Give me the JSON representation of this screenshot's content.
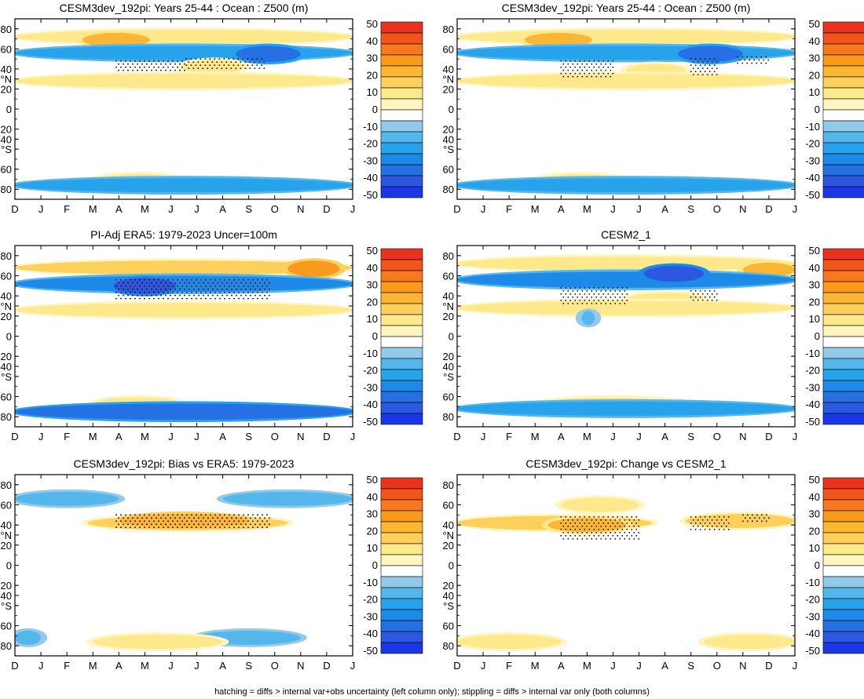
{
  "chart_data": [
    {
      "type": "heatmap",
      "title": "CESM3dev_192pi: Years 25-44 : Ocean : Z500 (m)",
      "panel": "top-left",
      "x_ticks": [
        "D",
        "J",
        "F",
        "M",
        "A",
        "M",
        "J",
        "J",
        "A",
        "S",
        "O",
        "N",
        "D",
        "J"
      ],
      "y_ticks": [
        "80",
        "60",
        "40",
        "°N",
        "20",
        "0",
        "20",
        "40",
        "°S",
        "60",
        "80"
      ],
      "colorbar_ticks": [
        "50",
        "40",
        "30",
        "20",
        "10",
        "0",
        "-10",
        "-20",
        "-30",
        "-40",
        "-50"
      ],
      "features": [
        {
          "kind": "warm",
          "lat": 72,
          "t0": 0,
          "t1": 13,
          "value": 10
        },
        {
          "kind": "warm",
          "lat": 69,
          "t0": 2.6,
          "t1": 5.2,
          "value": 20
        },
        {
          "kind": "cold",
          "lat": 56,
          "t0": 0,
          "t1": 13,
          "value": -20
        },
        {
          "kind": "cold",
          "lat": 55,
          "t0": 8.5,
          "t1": 11,
          "value": -30
        },
        {
          "kind": "warm",
          "lat": 42,
          "t0": 6.5,
          "t1": 8.8,
          "value": 10
        },
        {
          "kind": "warm",
          "lat": 28,
          "t0": 0,
          "t1": 13,
          "value": 10
        },
        {
          "kind": "warm",
          "lat": -72,
          "t0": 3,
          "t1": 6.5,
          "value": 10
        },
        {
          "kind": "cold",
          "lat": -76,
          "t0": 0,
          "t1": 13,
          "value": -20
        }
      ],
      "stipple": [
        {
          "t0": 3.9,
          "t1": 6.6,
          "lat0": 38,
          "lat1": 48
        },
        {
          "t0": 6.6,
          "t1": 9.6,
          "lat0": 40,
          "lat1": 50
        }
      ]
    },
    {
      "type": "heatmap",
      "title": "CESM3dev_192pi: Years 25-44 : Ocean : Z500 (m)",
      "panel": "top-right",
      "x_ticks": [
        "D",
        "J",
        "F",
        "M",
        "A",
        "M",
        "J",
        "J",
        "A",
        "S",
        "O",
        "N",
        "D",
        "J"
      ],
      "y_ticks": [
        "80",
        "60",
        "40",
        "°N",
        "20",
        "0",
        "20",
        "40",
        "°S",
        "60",
        "80"
      ],
      "colorbar_ticks": [
        "50",
        "40",
        "30",
        "20",
        "10",
        "0",
        "-10",
        "-20",
        "-30",
        "-40",
        "-50"
      ],
      "features": [
        {
          "kind": "warm",
          "lat": 72,
          "t0": 0,
          "t1": 13,
          "value": 10
        },
        {
          "kind": "warm",
          "lat": 69,
          "t0": 2.6,
          "t1": 5.2,
          "value": 20
        },
        {
          "kind": "cold",
          "lat": 56,
          "t0": 0,
          "t1": 13,
          "value": -20
        },
        {
          "kind": "cold",
          "lat": 55,
          "t0": 8.5,
          "t1": 11,
          "value": -30
        },
        {
          "kind": "warm",
          "lat": 38,
          "t0": 6.5,
          "t1": 8.8,
          "value": 10
        },
        {
          "kind": "warm",
          "lat": 28,
          "t0": 0,
          "t1": 13,
          "value": 10
        },
        {
          "kind": "warm",
          "lat": -72,
          "t0": 3,
          "t1": 6.5,
          "value": 10
        },
        {
          "kind": "cold",
          "lat": -76,
          "t0": 0,
          "t1": 13,
          "value": -20
        }
      ],
      "stipple": [
        {
          "t0": 4,
          "t1": 6,
          "lat0": 30,
          "lat1": 48
        },
        {
          "t0": 9,
          "t1": 10,
          "lat0": 33,
          "lat1": 50
        },
        {
          "t0": 10.8,
          "t1": 12,
          "lat0": 45,
          "lat1": 52
        }
      ]
    },
    {
      "type": "heatmap",
      "title": "PI-Adj ERA5: 1979-2023 Uncer=100m",
      "panel": "middle-left",
      "x_ticks": [
        "D",
        "J",
        "F",
        "M",
        "A",
        "M",
        "J",
        "J",
        "A",
        "S",
        "O",
        "N",
        "D",
        "J"
      ],
      "y_ticks": [
        "80",
        "60",
        "40",
        "°N",
        "20",
        "0",
        "20",
        "40",
        "°S",
        "60",
        "80"
      ],
      "colorbar_ticks": [
        "50",
        "40",
        "30",
        "20",
        "10",
        "0",
        "-10",
        "-20",
        "-30",
        "-40",
        "-50"
      ],
      "features": [
        {
          "kind": "warm",
          "lat": 68,
          "t0": 0,
          "t1": 13,
          "value": 15
        },
        {
          "kind": "warm",
          "lat": 67,
          "t0": 10.5,
          "t1": 12.5,
          "value": 25
        },
        {
          "kind": "cold",
          "lat": 52,
          "t0": 0,
          "t1": 13,
          "value": -25
        },
        {
          "kind": "cold",
          "lat": 50,
          "t0": 3.8,
          "t1": 6.2,
          "value": -35
        },
        {
          "kind": "warm",
          "lat": 26,
          "t0": 0,
          "t1": 13,
          "value": 10
        },
        {
          "kind": "warm",
          "lat": -68,
          "t0": 3,
          "t1": 6.5,
          "value": 10
        },
        {
          "kind": "cold",
          "lat": -75,
          "t0": 0,
          "t1": 13,
          "value": -30
        }
      ],
      "stipple": [
        {
          "t0": 3.9,
          "t1": 9.8,
          "lat0": 36,
          "lat1": 56
        }
      ]
    },
    {
      "type": "heatmap",
      "title": "CESM2_1",
      "panel": "middle-right",
      "x_ticks": [
        "D",
        "J",
        "F",
        "M",
        "A",
        "M",
        "J",
        "J",
        "A",
        "S",
        "O",
        "N",
        "D",
        "J"
      ],
      "y_ticks": [
        "80",
        "60",
        "40",
        "°N",
        "20",
        "0",
        "20",
        "40",
        "°S",
        "60",
        "80"
      ],
      "colorbar_ticks": [
        "50",
        "40",
        "30",
        "20",
        "10",
        "0",
        "-10",
        "-20",
        "-30",
        "-40",
        "-50"
      ],
      "features": [
        {
          "kind": "warm",
          "lat": 72,
          "t0": 0,
          "t1": 13,
          "value": 10
        },
        {
          "kind": "warm",
          "lat": 66,
          "t0": 11,
          "t1": 13,
          "value": 20
        },
        {
          "kind": "cold",
          "lat": 56,
          "t0": 0,
          "t1": 13,
          "value": -25
        },
        {
          "kind": "cold",
          "lat": 62,
          "t0": 7.2,
          "t1": 9.5,
          "value": -35
        },
        {
          "kind": "warm",
          "lat": 36,
          "t0": 6.5,
          "t1": 9.5,
          "value": 10
        },
        {
          "kind": "warm",
          "lat": 28,
          "t0": 0,
          "t1": 13,
          "value": 10
        },
        {
          "kind": "cold",
          "lat": 18,
          "t0": 4.8,
          "t1": 5.3,
          "value": -10
        },
        {
          "kind": "warm",
          "lat": -68,
          "t0": 3,
          "t1": 9,
          "value": 10
        },
        {
          "kind": "cold",
          "lat": -72,
          "t0": 0,
          "t1": 13,
          "value": -20
        }
      ],
      "stipple": [
        {
          "t0": 4,
          "t1": 6.6,
          "lat0": 30,
          "lat1": 48
        },
        {
          "t0": 9,
          "t1": 10,
          "lat0": 33,
          "lat1": 45
        }
      ]
    },
    {
      "type": "heatmap",
      "title": "CESM3dev_192pi: Bias vs ERA5: 1979-2023",
      "panel": "bottom-left",
      "x_ticks": [
        "D",
        "J",
        "F",
        "M",
        "A",
        "M",
        "J",
        "J",
        "A",
        "S",
        "O",
        "N",
        "D",
        "J"
      ],
      "y_ticks": [
        "80",
        "60",
        "40",
        "°N",
        "20",
        "0",
        "20",
        "40",
        "°S",
        "60",
        "80"
      ],
      "colorbar_ticks": [
        "50",
        "40",
        "30",
        "20",
        "10",
        "0",
        "-10",
        "-20",
        "-30",
        "-40",
        "-50"
      ],
      "features": [
        {
          "kind": "cold",
          "lat": 66,
          "t0": 0,
          "t1": 4,
          "value": -15
        },
        {
          "kind": "cold",
          "lat": 66,
          "t0": 8,
          "t1": 13,
          "value": -15
        },
        {
          "kind": "warm",
          "lat": 42,
          "t0": 2.8,
          "t1": 10.5,
          "value": 15
        },
        {
          "kind": "warm",
          "lat": 44,
          "t0": 4,
          "t1": 9,
          "value": 22
        },
        {
          "kind": "cold",
          "lat": -72,
          "t0": 0,
          "t1": 1,
          "value": -10
        },
        {
          "kind": "cold",
          "lat": -72,
          "t0": 7,
          "t1": 11,
          "value": -10
        },
        {
          "kind": "warm",
          "lat": -76,
          "t0": 3,
          "t1": 8,
          "value": 10
        }
      ],
      "stipple": [
        {
          "t0": 3.9,
          "t1": 9.8,
          "lat0": 36,
          "lat1": 50
        }
      ]
    },
    {
      "type": "heatmap",
      "title": "CESM3dev_192pi: Change vs CESM2_1",
      "panel": "bottom-right",
      "x_ticks": [
        "D",
        "J",
        "F",
        "M",
        "A",
        "M",
        "J",
        "J",
        "A",
        "S",
        "O",
        "N",
        "D",
        "J"
      ],
      "y_ticks": [
        "80",
        "60",
        "40",
        "°N",
        "20",
        "0",
        "20",
        "40",
        "°S",
        "60",
        "80"
      ],
      "colorbar_ticks": [
        "50",
        "40",
        "30",
        "20",
        "10",
        "0",
        "-10",
        "-20",
        "-30",
        "-40",
        "-50"
      ],
      "features": [
        {
          "kind": "warm",
          "lat": 42,
          "t0": 0,
          "t1": 7.5,
          "value": 15
        },
        {
          "kind": "warm",
          "lat": 40,
          "t0": 3.5,
          "t1": 6.5,
          "value": 20
        },
        {
          "kind": "warm",
          "lat": 44,
          "t0": 8.8,
          "t1": 13,
          "value": 15
        },
        {
          "kind": "warm",
          "lat": 60,
          "t0": 4,
          "t1": 7,
          "value": 10
        },
        {
          "kind": "warm",
          "lat": -76,
          "t0": 0,
          "t1": 4,
          "value": 10
        },
        {
          "kind": "warm",
          "lat": -76,
          "t0": 9.5,
          "t1": 13,
          "value": 10
        }
      ],
      "stipple": [
        {
          "t0": 4,
          "t1": 7,
          "lat0": 25,
          "lat1": 48
        },
        {
          "t0": 9,
          "t1": 10.5,
          "lat0": 35,
          "lat1": 48
        },
        {
          "t0": 11,
          "t1": 12,
          "lat0": 42,
          "lat1": 50
        }
      ]
    }
  ],
  "colorbar_colors": [
    "#e8331e",
    "#f2541b",
    "#f7781e",
    "#f99a1c",
    "#fbb633",
    "#fdd05c",
    "#fee88c",
    "#fff5bf",
    "#ffffff",
    "#92cbea",
    "#55b6ec",
    "#27a3ec",
    "#1e8ae8",
    "#2571e3",
    "#2c58e0",
    "#1b36e6"
  ],
  "footer": "hatching = diffs > internal var+obs uncertainty (left column only); stippling = diffs > internal var only (both columns)"
}
